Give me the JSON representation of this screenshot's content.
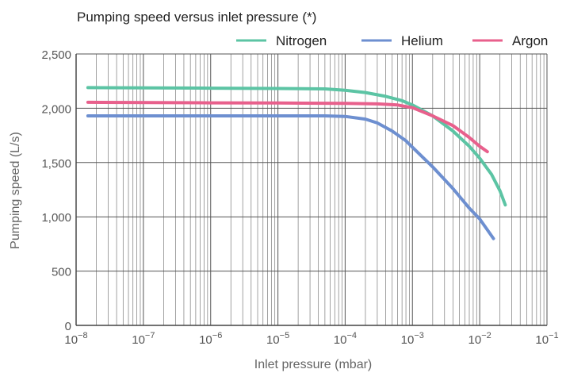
{
  "chart_data": {
    "type": "line",
    "title": "Pumping speed versus inlet pressure (*)",
    "xlabel": "Inlet pressure (mbar)",
    "ylabel": "Pumping speed (L/s)",
    "xscale": "log",
    "xlim": [
      1e-08,
      0.1
    ],
    "ylim": [
      0,
      2500
    ],
    "grid": true,
    "legend_position": "top-right",
    "x_tick_labels": [
      {
        "base": "10",
        "exp": "−8"
      },
      {
        "base": "10",
        "exp": "−7"
      },
      {
        "base": "10",
        "exp": "−6"
      },
      {
        "base": "10",
        "exp": "−5"
      },
      {
        "base": "10",
        "exp": "−4"
      },
      {
        "base": "10",
        "exp": "−3"
      },
      {
        "base": "10",
        "exp": "−2"
      },
      {
        "base": "10",
        "exp": "−1"
      }
    ],
    "y_ticks": [
      0,
      500,
      1000,
      1500,
      2000,
      2500
    ],
    "y_tick_labels": [
      "0",
      "500",
      "1,000",
      "1,500",
      "2,000",
      "2,500"
    ],
    "series": [
      {
        "name": "Nitrogen",
        "color": "#5cc4a4",
        "x": [
          1.5e-08,
          1e-06,
          1e-05,
          5e-05,
          0.0001,
          0.0002,
          0.0004,
          0.0007,
          0.001,
          0.002,
          0.004,
          0.007,
          0.01,
          0.015,
          0.02,
          0.024
        ],
        "y": [
          2190,
          2185,
          2182,
          2178,
          2165,
          2145,
          2110,
          2070,
          2030,
          1930,
          1790,
          1650,
          1540,
          1390,
          1240,
          1110
        ]
      },
      {
        "name": "Helium",
        "color": "#6d8fd0",
        "x": [
          1.5e-08,
          1e-06,
          1e-05,
          5e-05,
          0.0001,
          0.0002,
          0.0003,
          0.0005,
          0.0008,
          0.001,
          0.002,
          0.004,
          0.007,
          0.01,
          0.013,
          0.016
        ],
        "y": [
          1930,
          1930,
          1930,
          1930,
          1925,
          1900,
          1865,
          1790,
          1700,
          1640,
          1460,
          1260,
          1080,
          980,
          880,
          800
        ]
      },
      {
        "name": "Argon",
        "color": "#e8608c",
        "x": [
          1.5e-08,
          1e-06,
          1e-05,
          0.0001,
          0.0003,
          0.0006,
          0.001,
          0.002,
          0.004,
          0.007,
          0.01,
          0.013
        ],
        "y": [
          2055,
          2050,
          2048,
          2045,
          2040,
          2030,
          2005,
          1930,
          1840,
          1730,
          1650,
          1600
        ]
      }
    ]
  }
}
